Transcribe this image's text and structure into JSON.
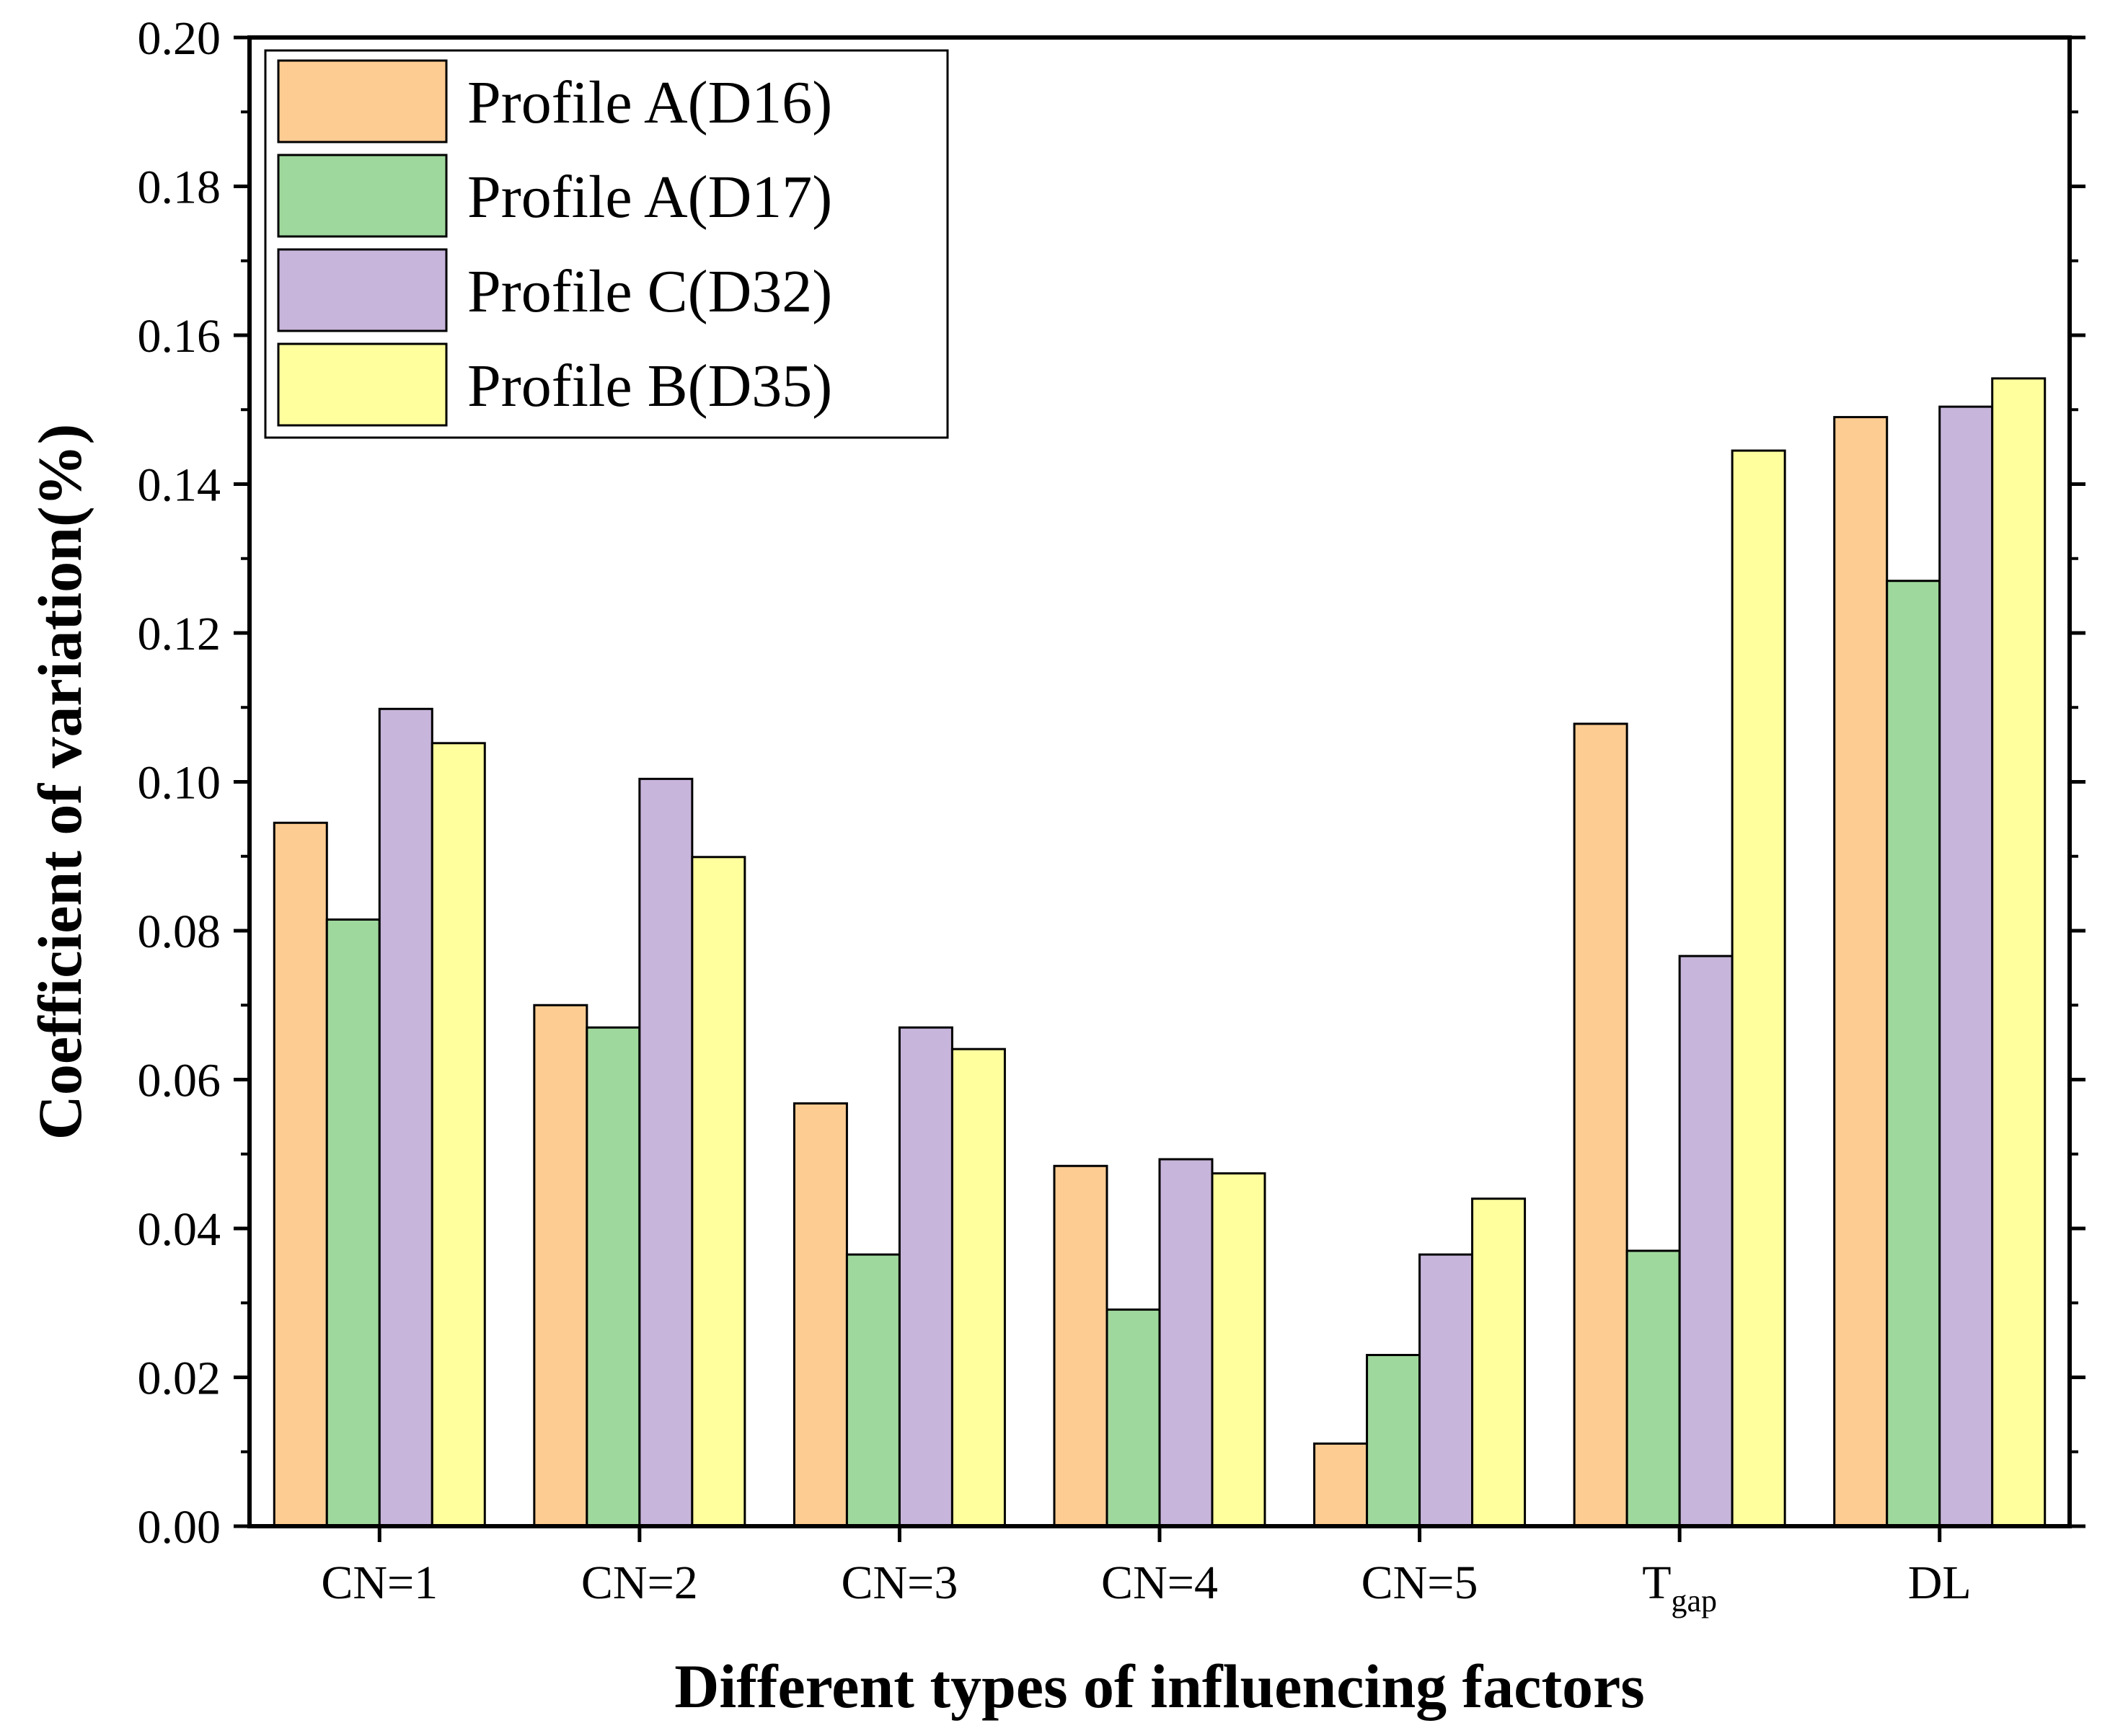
{
  "chart_data": {
    "type": "bar",
    "title": "",
    "xlabel": "Different types of influencing factors",
    "ylabel": "Coefficient of variation(%)",
    "ylim": [
      0,
      0.2
    ],
    "yticks": [
      "0.00",
      "0.02",
      "0.04",
      "0.06",
      "0.08",
      "0.10",
      "0.12",
      "0.14",
      "0.16",
      "0.18",
      "0.20"
    ],
    "categories": [
      {
        "label": "CN=1",
        "sub": ""
      },
      {
        "label": "CN=2",
        "sub": ""
      },
      {
        "label": "CN=3",
        "sub": ""
      },
      {
        "label": "CN=4",
        "sub": ""
      },
      {
        "label": "CN=5",
        "sub": ""
      },
      {
        "label": "T",
        "sub": "gap"
      },
      {
        "label": "DL",
        "sub": ""
      }
    ],
    "series": [
      {
        "name": "Profile A(D16)",
        "color": "#FDCC92",
        "values": [
          0.0945,
          0.07,
          0.0568,
          0.0484,
          0.0111,
          0.1078,
          0.149
        ]
      },
      {
        "name": "Profile A(D17)",
        "color": "#9FD89C",
        "values": [
          0.0815,
          0.067,
          0.0365,
          0.0291,
          0.023,
          0.037,
          0.127
        ]
      },
      {
        "name": "Profile C(D32)",
        "color": "#C7B5DB",
        "values": [
          0.1098,
          0.1004,
          0.067,
          0.0493,
          0.0365,
          0.0766,
          0.1504
        ]
      },
      {
        "name": "Profile B(D35)",
        "color": "#FFFF9E",
        "values": [
          0.1052,
          0.0899,
          0.0641,
          0.0474,
          0.044,
          0.1445,
          0.1542
        ]
      }
    ],
    "grid": false,
    "legend_position": "top-left"
  }
}
